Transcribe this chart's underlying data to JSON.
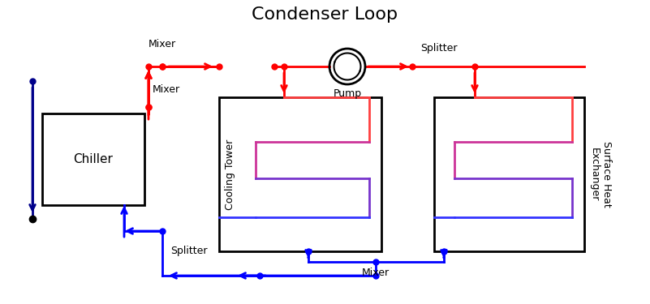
{
  "title": "Condenser Loop",
  "title_fontsize": 16,
  "red": "#ff0000",
  "blue": "#0000ff",
  "dark_blue": "#00008b",
  "black": "#000000",
  "bg_color": "#ffffff",
  "coil_colors": [
    "#ff4040",
    "#cc3399",
    "#7733cc",
    "#3333ff"
  ],
  "lw": 2.0,
  "dot_size": 5,
  "pump_label": "Pump",
  "mixer_label": "Mixer",
  "splitter_label": "Splitter",
  "btm_mixer_label": "Mixer",
  "btm_splitter_label": "Splitter",
  "chiller_label": "Chiller",
  "ct_label": "Cooling Tower",
  "shx_label": "Surface Heat\nExchanger"
}
